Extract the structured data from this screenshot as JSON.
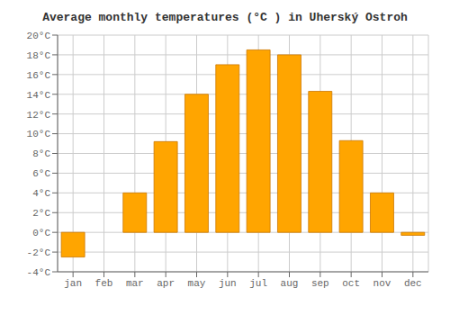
{
  "chart_data": {
    "type": "bar",
    "title": "Average monthly temperatures (°C ) in Uherský Ostroh",
    "categories": [
      "jan",
      "feb",
      "mar",
      "apr",
      "may",
      "jun",
      "jul",
      "aug",
      "sep",
      "oct",
      "nov",
      "dec"
    ],
    "values": [
      -2.5,
      0.0,
      4.0,
      9.2,
      14.0,
      17.0,
      18.5,
      18.0,
      14.3,
      9.3,
      4.0,
      -0.3
    ],
    "color": "#FFA500",
    "ylim": [
      -4,
      20
    ],
    "yticks": [
      {
        "value": -4,
        "label": "-4°C"
      },
      {
        "value": -2,
        "label": "-2°C"
      },
      {
        "value": 0,
        "label": "0°C"
      },
      {
        "value": 2,
        "label": "2°C"
      },
      {
        "value": 4,
        "label": "4°C"
      },
      {
        "value": 6,
        "label": "6°C"
      },
      {
        "value": 8,
        "label": "8°C"
      },
      {
        "value": 10,
        "label": "10°C"
      },
      {
        "value": 12,
        "label": "12°C"
      },
      {
        "value": 14,
        "label": "14°C"
      },
      {
        "value": 16,
        "label": "16°C"
      },
      {
        "value": 18,
        "label": "18°C"
      },
      {
        "value": 20,
        "label": "20°C"
      }
    ],
    "grid": true
  }
}
